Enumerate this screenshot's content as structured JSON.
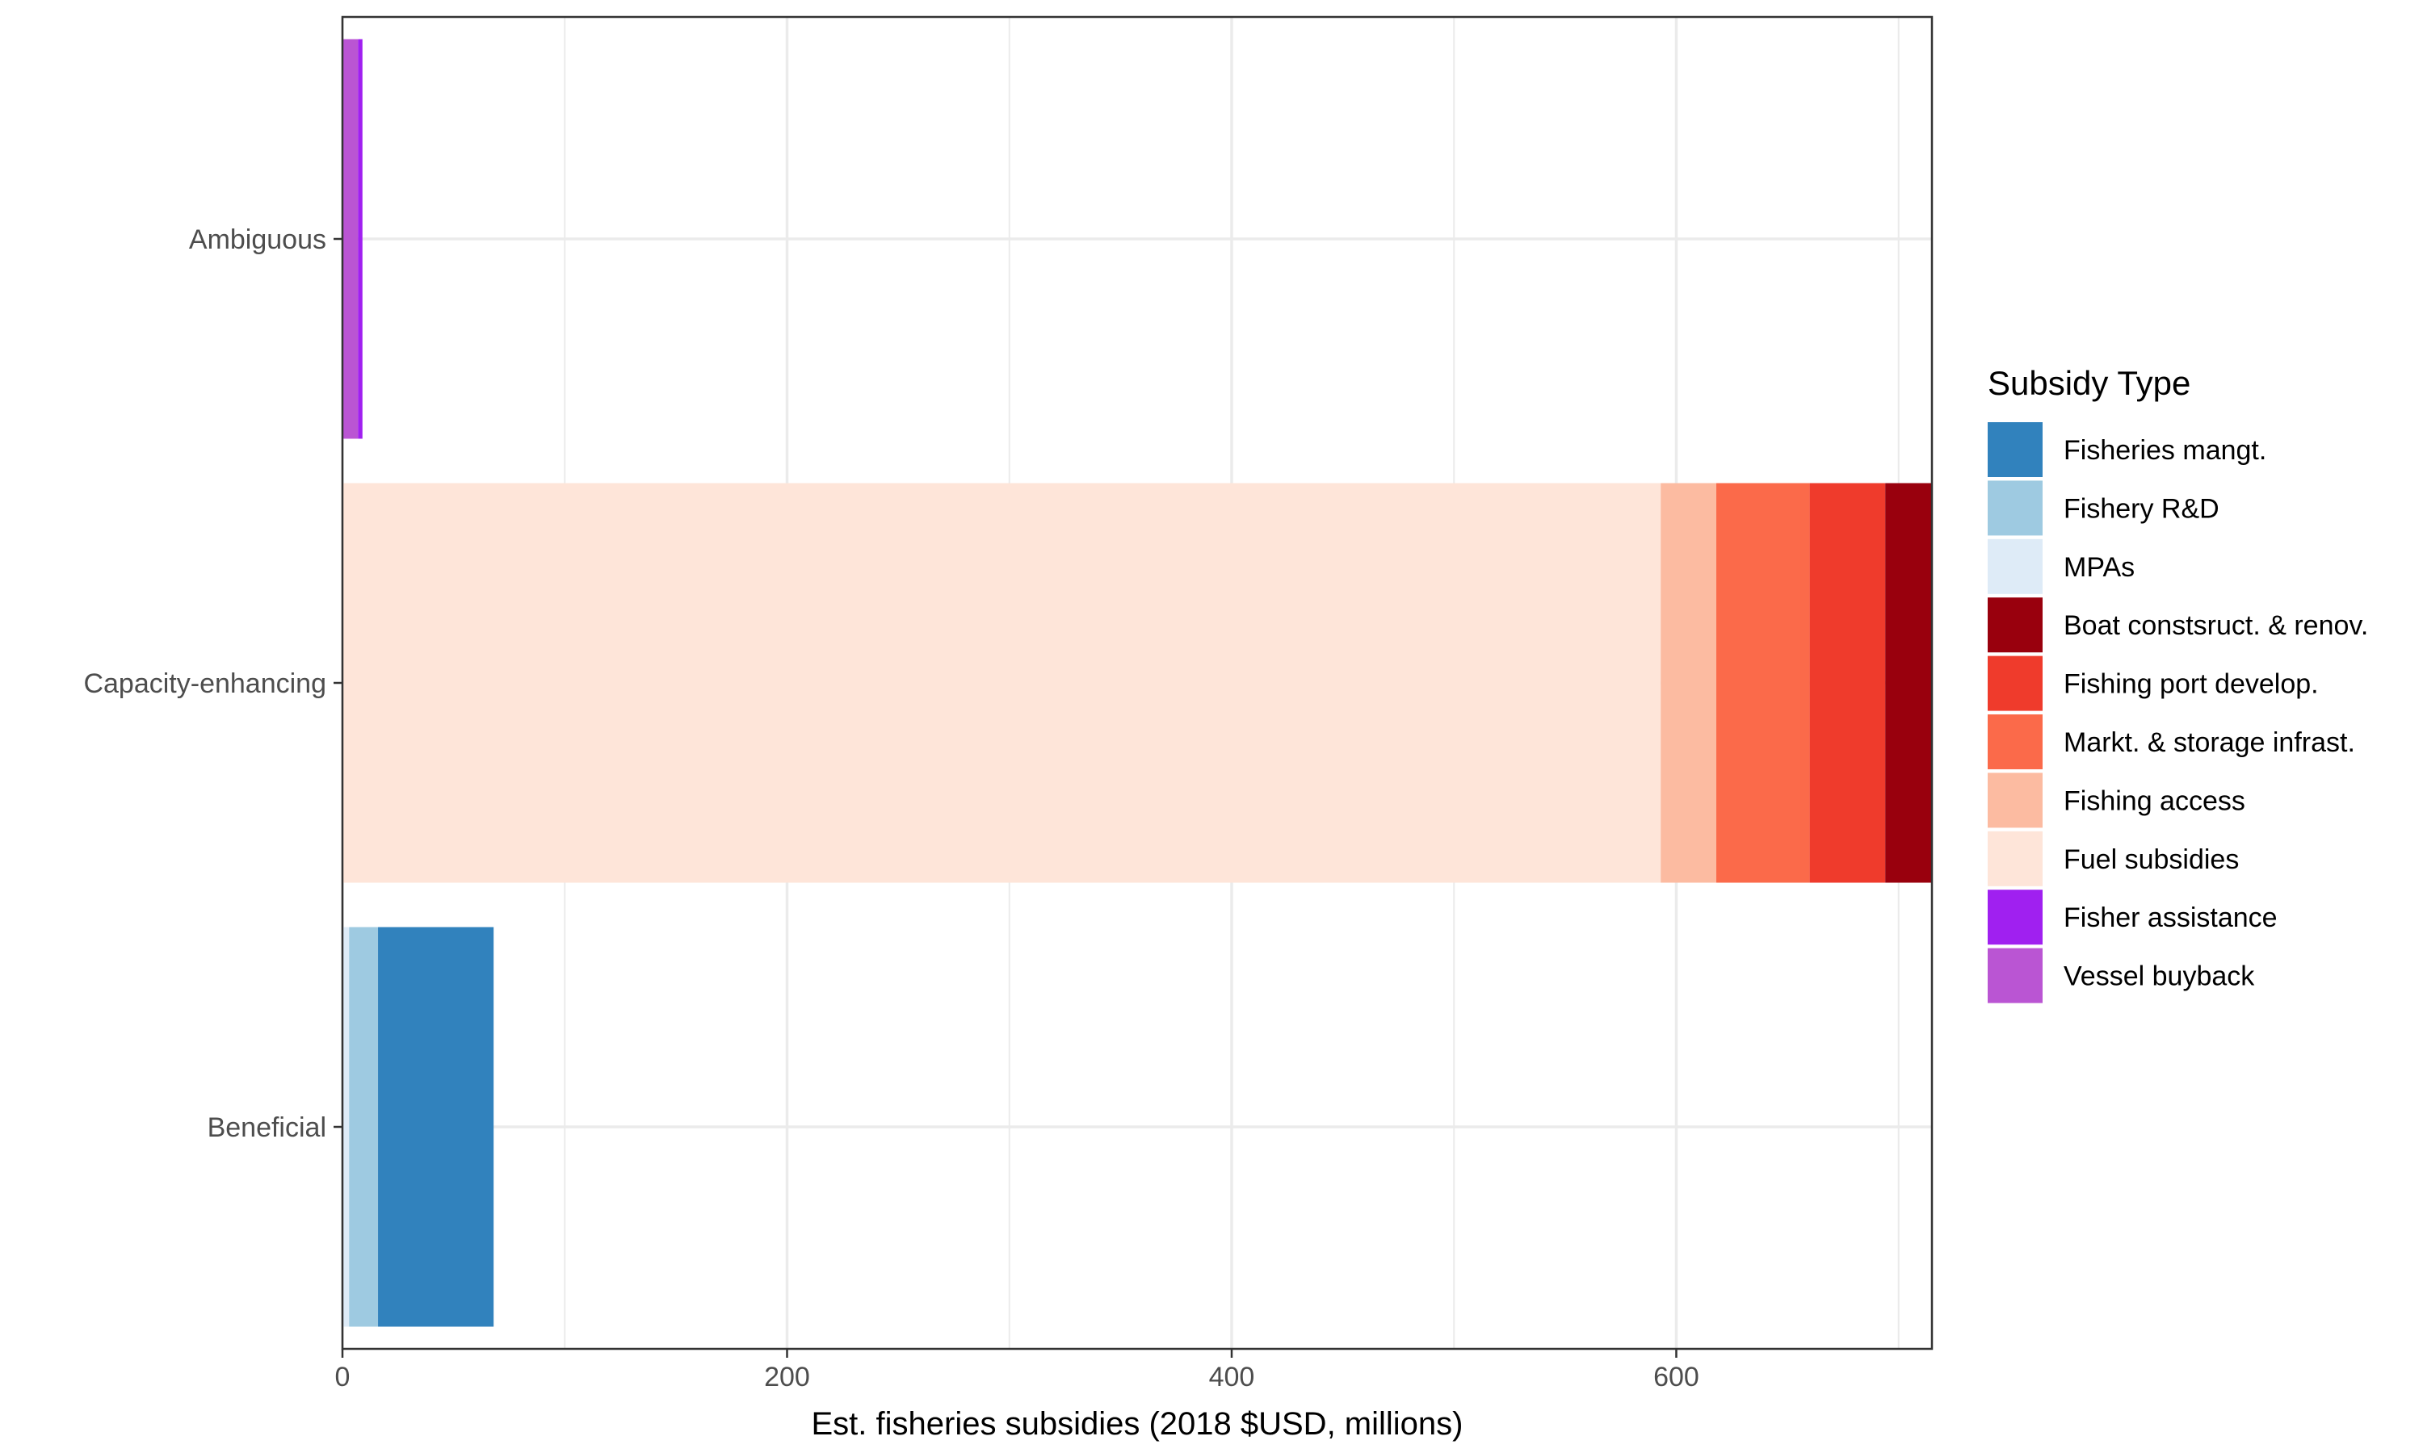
{
  "chart_data": {
    "type": "bar",
    "orientation": "horizontal",
    "stacked": true,
    "categories": [
      "Beneficial",
      "Capacity-enhancing",
      "Ambiguous"
    ],
    "xlabel": "Est. fisheries subsidies (2018 $USD, millions)",
    "ylabel": "",
    "xlim": [
      0,
      715
    ],
    "xticks": [
      0,
      200,
      400,
      600
    ],
    "grid": true,
    "legend": {
      "title": "Subsidy Type",
      "placement": "right"
    },
    "series": [
      {
        "name": "Fisheries mangt.",
        "color": "#3182BD",
        "values": [
          52,
          0,
          0
        ]
      },
      {
        "name": "Fishery R&D",
        "color": "#9ECAE1",
        "values": [
          13,
          0,
          0
        ]
      },
      {
        "name": "MPAs",
        "color": "#DEEBF7",
        "values": [
          3,
          0,
          0
        ]
      },
      {
        "name": "Boat constsruct. & renov.",
        "color": "#99000D",
        "values": [
          0,
          21,
          0
        ]
      },
      {
        "name": "Fishing port develop.",
        "color": "#EF3B2C",
        "values": [
          0,
          34,
          0
        ]
      },
      {
        "name": "Markt. & storage infrast.",
        "color": "#FB6A4A",
        "values": [
          0,
          42,
          0
        ]
      },
      {
        "name": "Fishing access",
        "color": "#FCBBA1",
        "values": [
          0,
          25,
          0
        ]
      },
      {
        "name": "Fuel subsidies",
        "color": "#FEE5D9",
        "values": [
          0,
          593,
          0
        ]
      },
      {
        "name": "Fisher assistance",
        "color": "#A020F0",
        "values": [
          0,
          0,
          2
        ]
      },
      {
        "name": "Vessel buyback",
        "color": "#BA55D3",
        "values": [
          0,
          0,
          7
        ]
      }
    ]
  }
}
